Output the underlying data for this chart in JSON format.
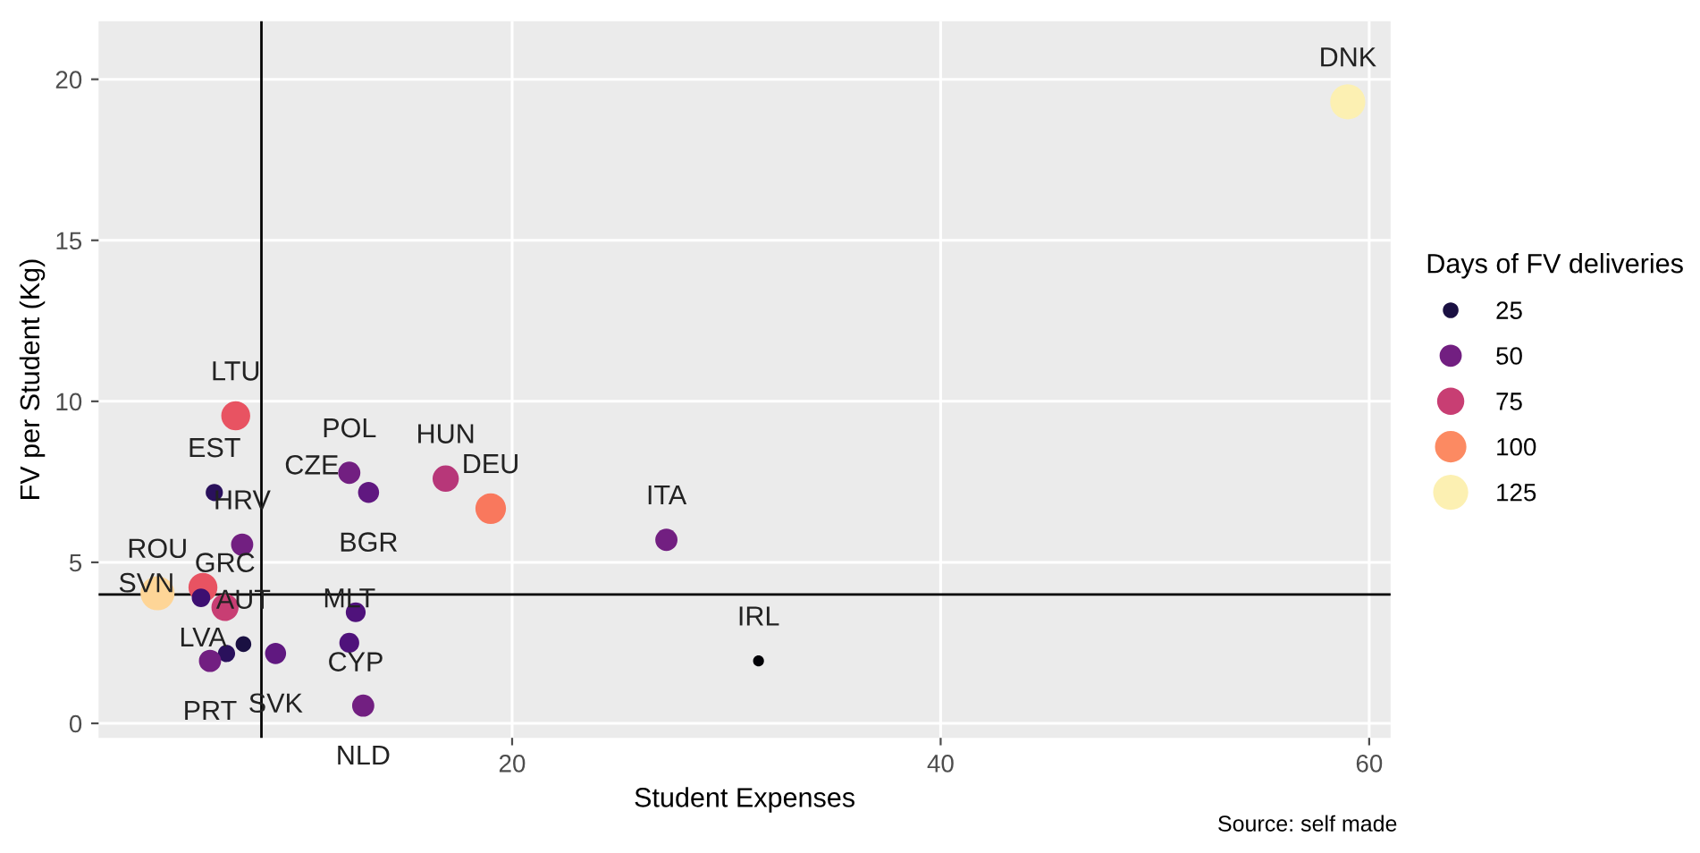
{
  "chart_data": {
    "type": "bubble",
    "xlabel": "Student Expenses",
    "ylabel": "FV per Student (Kg)",
    "legend_title": "Days of FV deliveries",
    "xlim": [
      0.7,
      61
    ],
    "ylim": [
      -0.45,
      21.8
    ],
    "xticks": [
      20,
      40,
      60
    ],
    "yticks": [
      0,
      5,
      10,
      15,
      20
    ],
    "grid": true,
    "size_legend": [
      25,
      50,
      75,
      100,
      125
    ],
    "series": [
      {
        "x": [
          59.0,
          31.5,
          27.2,
          19.0,
          16.9,
          12.4,
          13.3,
          7.1,
          6.1,
          7.4,
          12.7,
          12.4,
          13.05,
          3.45,
          5.57,
          5.48,
          6.6,
          7.46,
          6.67,
          5.9,
          8.96
        ],
        "values": [
          19.3,
          1.94,
          5.7,
          6.67,
          7.6,
          7.78,
          7.17,
          9.55,
          7.17,
          5.55,
          3.45,
          2.5,
          0.55,
          4.04,
          4.22,
          3.9,
          3.6,
          2.46,
          2.17,
          1.94,
          2.17
        ],
        "sizes": [
          125,
          12,
          50,
          95,
          70,
          50,
          45,
          85,
          30,
          50,
          40,
          40,
          50,
          118,
          85,
          35,
          75,
          25,
          30,
          50,
          45
        ]
      }
    ],
    "ref_lines": [
      {
        "axis": "x",
        "value": 8.3,
        "color": "#000000"
      },
      {
        "axis": "y",
        "value": 4,
        "color": "#000000"
      }
    ],
    "annotations": [
      {
        "text": "DNK",
        "x": 59.0,
        "y": 19.3
      },
      {
        "text": "IRL",
        "x": 31.5,
        "y": 1.94
      },
      {
        "text": "ITA",
        "x": 27.2,
        "y": 5.7
      },
      {
        "text": "DEU",
        "x": 19.0,
        "y": 6.67
      },
      {
        "text": "HUN",
        "x": 16.9,
        "y": 7.6
      },
      {
        "text": "POL",
        "x": 12.4,
        "y": 7.78
      },
      {
        "text": "BGR",
        "x": 13.3,
        "y": 7.17
      },
      {
        "text": "LTU",
        "x": 7.1,
        "y": 9.55
      },
      {
        "text": "EST",
        "x": 6.1,
        "y": 7.17
      },
      {
        "text": "HRV",
        "x": 7.4,
        "y": 5.55
      },
      "CZE",
      {
        "text": "CYP",
        "x": 12.7,
        "y": 3.45
      },
      {
        "text": "MLT",
        "x": 12.4,
        "y": 2.5
      },
      {
        "text": "NLD",
        "x": 13.05,
        "y": 0.55
      },
      {
        "text": "ROU",
        "x": 3.45,
        "y": 4.04
      },
      {
        "text": "LVA",
        "x": 5.57,
        "y": 4.22
      },
      {
        "text": "SVN",
        "x": 5.48,
        "y": 3.9
      },
      {
        "text": "GRC",
        "x": 6.6,
        "y": 3.6
      },
      {
        "text": "AUT",
        "x": 7.46,
        "y": 2.46
      },
      {
        "text": "PRT",
        "x": 5.9,
        "y": 1.94
      },
      {
        "text": "SVK",
        "x": 8.96,
        "y": 2.17
      },
      "Source: self made"
    ]
  }
}
